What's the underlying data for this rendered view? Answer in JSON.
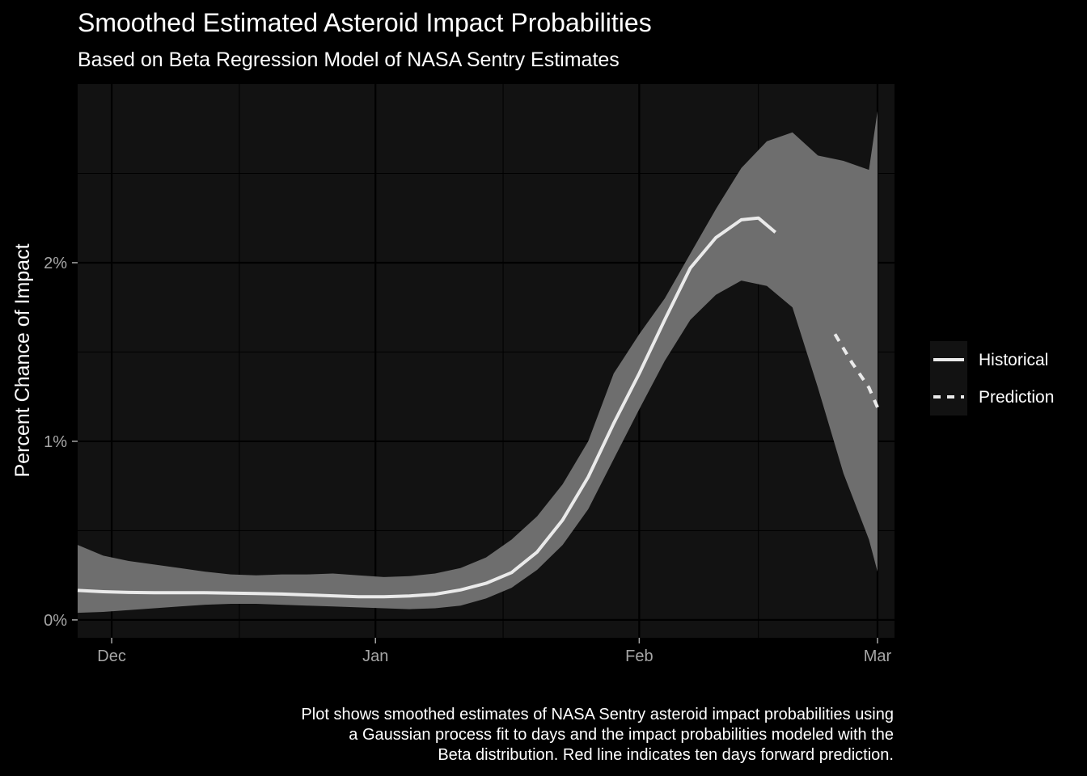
{
  "chart_data": {
    "type": "line",
    "title": "Smoothed Estimated Asteroid Impact Probabilities",
    "subtitle": "Based on Beta Regression Model of NASA Sentry Estimates",
    "ylabel": "Percent Chance of Impact",
    "xlabel": "",
    "caption": [
      "Plot shows smoothed estimates of NASA Sentry asteroid impact probabilities using",
      "a Gaussian process fit to days and the impact probabilities modeled with the",
      "Beta distribution. Red line indicates ten days forward prediction."
    ],
    "x_axis": {
      "kind": "date",
      "range": [
        "2024-11-27",
        "2025-03-03"
      ],
      "major_ticks": [
        {
          "date": "2024-12-01",
          "label": "Dec"
        },
        {
          "date": "2025-01-01",
          "label": "Jan"
        },
        {
          "date": "2025-02-01",
          "label": "Feb"
        },
        {
          "date": "2025-03-01",
          "label": "Mar"
        }
      ],
      "minor_ticks": [
        "2024-12-16",
        "2025-01-16",
        "2025-02-15"
      ]
    },
    "y_axis": {
      "unit": "%",
      "range": [
        -0.1,
        3.0
      ],
      "major_ticks": [
        {
          "value": 0,
          "label": "0%"
        },
        {
          "value": 1,
          "label": "1%"
        },
        {
          "value": 2,
          "label": "2%"
        }
      ],
      "minor_ticks": [
        0.5,
        1.5,
        2.5
      ]
    },
    "grid": true,
    "legend": {
      "position": "right",
      "entries": [
        {
          "label": "Historical",
          "linetype": "solid"
        },
        {
          "label": "Prediction",
          "linetype": "dashed"
        }
      ]
    },
    "colors": {
      "background": "#000000",
      "panel": "#121212",
      "grid": "#000000",
      "ribbon": "#6e6e6e",
      "line": "#eaeaea",
      "tick_text": "#a6a6a6",
      "text": "#ffffff"
    },
    "ribbon": {
      "x": [
        "2024-11-27",
        "2024-11-30",
        "2024-12-03",
        "2024-12-06",
        "2024-12-09",
        "2024-12-12",
        "2024-12-15",
        "2024-12-18",
        "2024-12-21",
        "2024-12-24",
        "2024-12-27",
        "2024-12-30",
        "2025-01-02",
        "2025-01-05",
        "2025-01-08",
        "2025-01-11",
        "2025-01-14",
        "2025-01-17",
        "2025-01-20",
        "2025-01-23",
        "2025-01-26",
        "2025-01-29",
        "2025-02-01",
        "2025-02-04",
        "2025-02-07",
        "2025-02-10",
        "2025-02-13",
        "2025-02-16",
        "2025-02-19",
        "2025-02-22",
        "2025-02-25",
        "2025-02-28",
        "2025-03-01"
      ],
      "upper": [
        0.42,
        0.36,
        0.33,
        0.31,
        0.29,
        0.27,
        0.255,
        0.25,
        0.255,
        0.255,
        0.26,
        0.25,
        0.24,
        0.245,
        0.26,
        0.29,
        0.35,
        0.45,
        0.58,
        0.76,
        1.0,
        1.38,
        1.6,
        1.8,
        2.05,
        2.3,
        2.53,
        2.68,
        2.73,
        2.6,
        2.57,
        2.52,
        2.85
      ],
      "lower": [
        0.04,
        0.045,
        0.055,
        0.065,
        0.075,
        0.085,
        0.09,
        0.09,
        0.085,
        0.08,
        0.075,
        0.07,
        0.065,
        0.06,
        0.065,
        0.08,
        0.12,
        0.18,
        0.28,
        0.42,
        0.62,
        0.9,
        1.18,
        1.45,
        1.68,
        1.82,
        1.9,
        1.87,
        1.75,
        1.3,
        0.82,
        0.45,
        0.27
      ]
    },
    "series": [
      {
        "name": "Historical",
        "linetype": "solid",
        "x": [
          "2024-11-27",
          "2024-11-30",
          "2024-12-03",
          "2024-12-06",
          "2024-12-09",
          "2024-12-12",
          "2024-12-15",
          "2024-12-18",
          "2024-12-21",
          "2024-12-24",
          "2024-12-27",
          "2024-12-30",
          "2025-01-02",
          "2025-01-05",
          "2025-01-08",
          "2025-01-11",
          "2025-01-14",
          "2025-01-17",
          "2025-01-20",
          "2025-01-23",
          "2025-01-26",
          "2025-01-29",
          "2025-02-01",
          "2025-02-04",
          "2025-02-07",
          "2025-02-10",
          "2025-02-13",
          "2025-02-15",
          "2025-02-17"
        ],
        "values": [
          0.165,
          0.158,
          0.154,
          0.152,
          0.152,
          0.152,
          0.15,
          0.148,
          0.145,
          0.14,
          0.135,
          0.13,
          0.13,
          0.134,
          0.144,
          0.168,
          0.205,
          0.265,
          0.38,
          0.56,
          0.8,
          1.1,
          1.38,
          1.68,
          1.97,
          2.14,
          2.24,
          2.25,
          2.17
        ]
      },
      {
        "name": "Prediction",
        "linetype": "dashed",
        "x": [
          "2025-02-24",
          "2025-02-26",
          "2025-02-28",
          "2025-03-01"
        ],
        "values": [
          1.6,
          1.44,
          1.3,
          1.19
        ]
      }
    ]
  }
}
